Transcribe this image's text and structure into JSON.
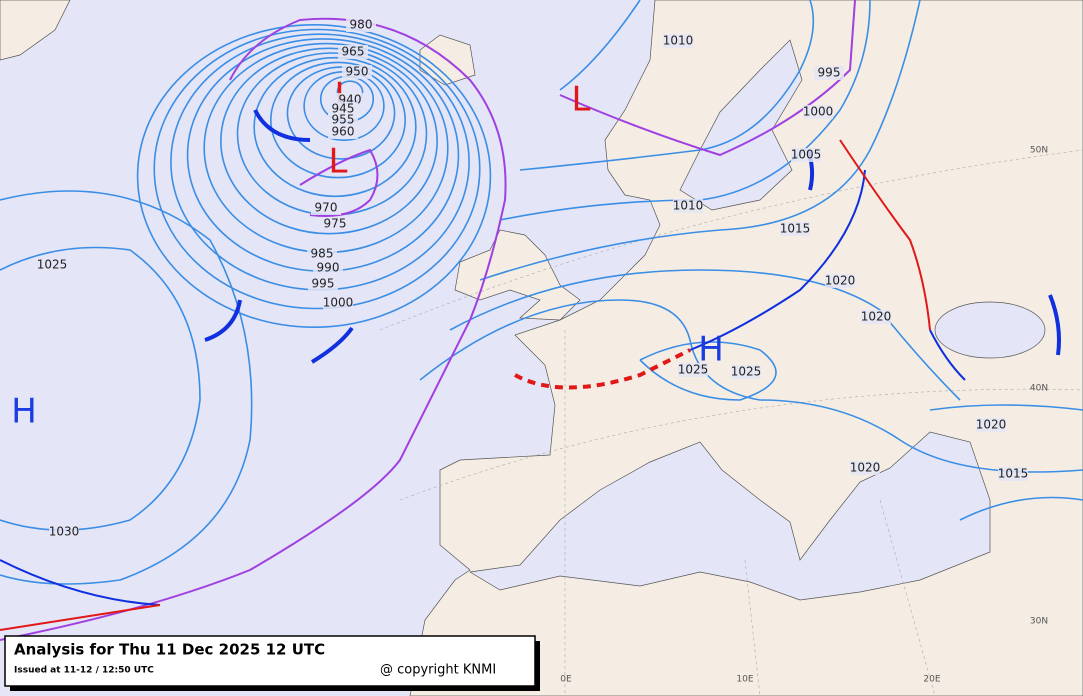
{
  "title_box": {
    "title": "Analysis for Thu 11 Dec 2025 12 UTC",
    "issued": "Issued at 11-12 / 12:50 UTC",
    "copyright": "@ copyright KNMI"
  },
  "pressure_centers": [
    {
      "letter": "H"
    },
    {
      "letter": "L"
    },
    {
      "letter": "L"
    },
    {
      "letter": "L"
    },
    {
      "letter": "H"
    }
  ],
  "isobar_labels": [
    "980",
    "965",
    "950",
    "940",
    "945",
    "955",
    "960",
    "970",
    "975",
    "985",
    "990",
    "995",
    "1000",
    "1025",
    "1030",
    "1010",
    "995",
    "1000",
    "1005",
    "1010",
    "1015",
    "1020",
    "1020",
    "1025",
    "1025",
    "1020",
    "1015",
    "1020"
  ],
  "graticule_labels": [
    "50N",
    "40N",
    "30N",
    "0E",
    "10E",
    "20E"
  ]
}
